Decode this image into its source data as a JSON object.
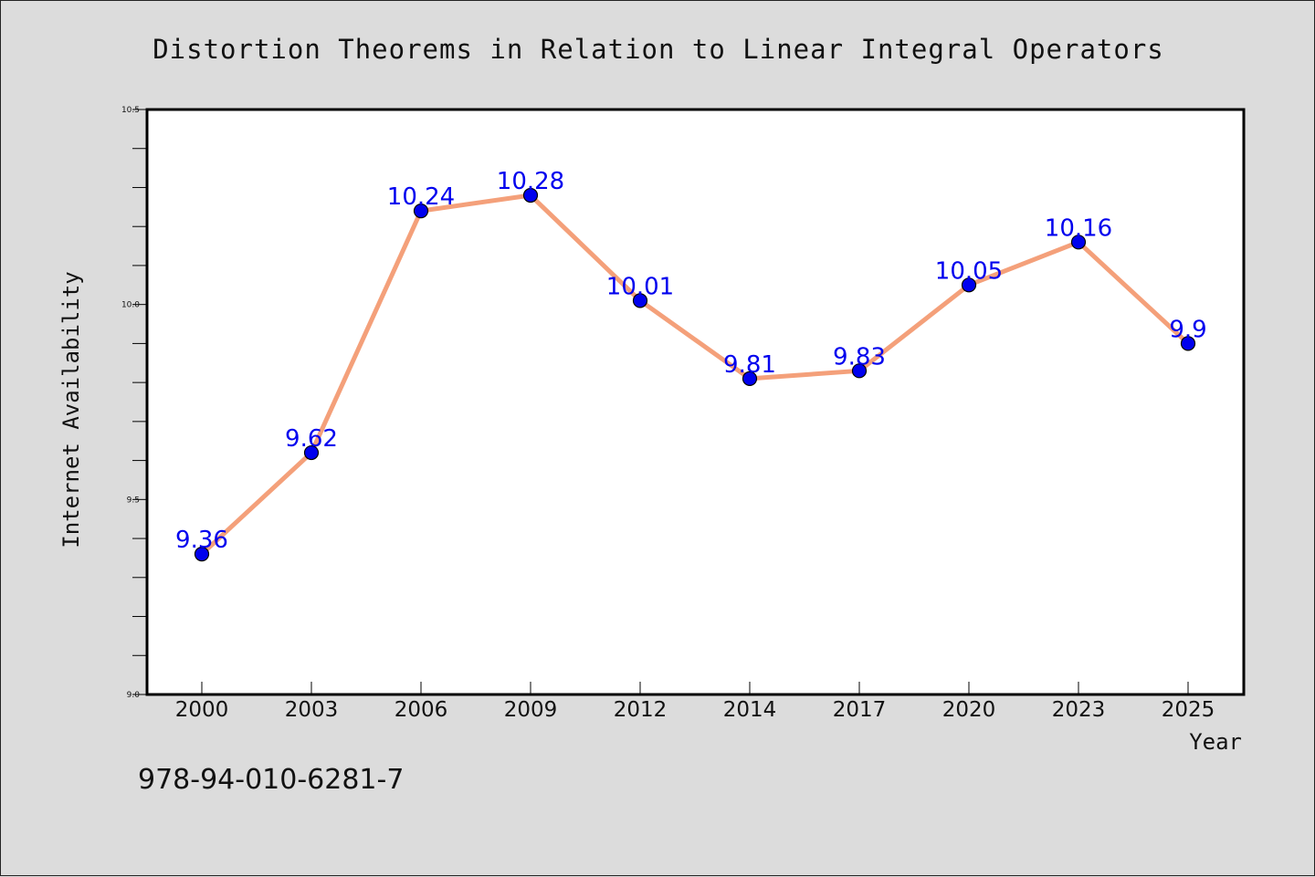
{
  "chart_data": {
    "type": "line",
    "title": "Distortion Theorems in Relation to Linear Integral Operators",
    "xlabel": "Year",
    "ylabel": "Internet Availability",
    "categories": [
      "2000",
      "2003",
      "2006",
      "2009",
      "2012",
      "2014",
      "2017",
      "2020",
      "2023",
      "2025"
    ],
    "series": [
      {
        "values": [
          9.36,
          9.62,
          10.24,
          10.28,
          10.01,
          9.81,
          9.83,
          10.05,
          10.16,
          9.9
        ],
        "labels": [
          "9.36",
          "9.62",
          "10.24",
          "10.28",
          "10.01",
          "9.81",
          "9.83",
          "10.05",
          "10.16",
          "9.9"
        ]
      }
    ],
    "ylim": [
      9.0,
      10.5
    ],
    "yticks": [
      "9.0",
      "9.5",
      "10.0",
      "10.5"
    ],
    "grid": false,
    "colors": {
      "line": "#f4a07a",
      "marker": "#0000ee",
      "label": "#0000ee"
    }
  },
  "annotation": "978-94-010-6281-7"
}
